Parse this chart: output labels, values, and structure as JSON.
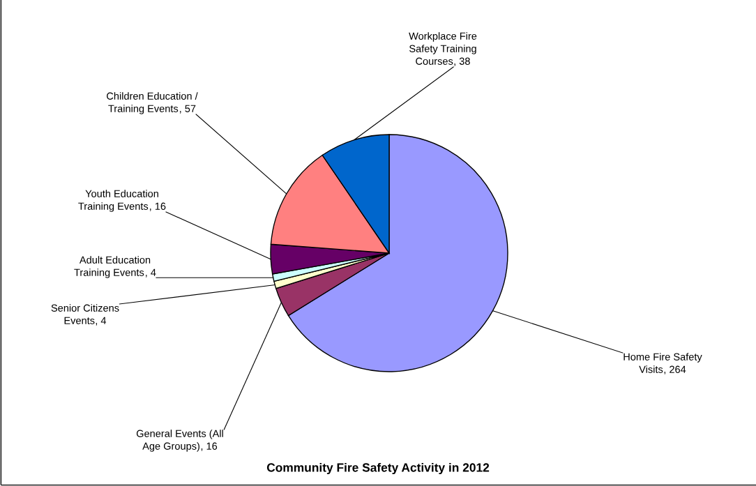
{
  "chart_data": {
    "type": "pie",
    "title": "Community Fire Safety Activity in 2012",
    "categories": [
      "Home Fire Safety\nVisits",
      "General Events (All\nAge Groups)",
      "Senior Citizens\nEvents",
      "Adult Education\nTraining Events",
      "Youth Education\nTraining Events",
      "Children Education /\nTraining Events",
      "Workplace Fire\nSafety Training\nCourses"
    ],
    "values": [
      264,
      16,
      4,
      4,
      16,
      57,
      38
    ],
    "colors": [
      "#9999ff",
      "#993366",
      "#ffffcc",
      "#ccffff",
      "#660066",
      "#ff8080",
      "#0066cc"
    ],
    "value_labels": [
      ", 264",
      ", 16",
      ", 4",
      ", 4",
      ", 16",
      ", 57",
      ", 38"
    ],
    "legend": false
  }
}
